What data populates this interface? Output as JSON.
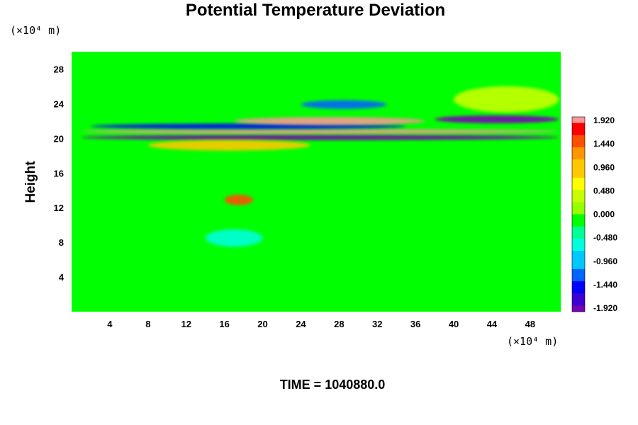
{
  "chart_data": {
    "type": "heatmap",
    "title": "Potential Temperature Deviation",
    "ylabel": "Height",
    "x_unit": "(×10⁴ m)",
    "y_unit": "(×10⁴ m)",
    "x_ticks": [
      "4",
      "8",
      "12",
      "16",
      "20",
      "24",
      "28",
      "32",
      "36",
      "40",
      "44",
      "48"
    ],
    "x_tick_values": [
      4,
      8,
      12,
      16,
      20,
      24,
      28,
      32,
      36,
      40,
      44,
      48
    ],
    "y_ticks": [
      "4",
      "8",
      "12",
      "16",
      "20",
      "24",
      "28"
    ],
    "y_tick_values": [
      4,
      8,
      12,
      16,
      20,
      24,
      28
    ],
    "xlim": [
      0,
      51.2
    ],
    "ylim": [
      0,
      30
    ],
    "colorbar": {
      "labels": [
        "1.920",
        "1.440",
        "0.960",
        "0.480",
        "0.000",
        "-0.480",
        "-0.960",
        "-1.440",
        "-1.920"
      ],
      "range": [
        -1.92,
        1.92
      ],
      "levels": 32,
      "stops": [
        "#7a00b4",
        "#3c00d2",
        "#0000ff",
        "#0064ff",
        "#00c8ff",
        "#00ffdc",
        "#00ff96",
        "#00ff00",
        "#96ff00",
        "#c8ff00",
        "#ffff00",
        "#ffc800",
        "#ff9600",
        "#ff5000",
        "#ff0000",
        "#ff9696"
      ]
    },
    "features": [
      {
        "x": [
          1,
          51
        ],
        "y": 20.1,
        "value": -1.9,
        "thickness": 0.6
      },
      {
        "x": [
          1,
          51
        ],
        "y": 20.8,
        "value": 1.9,
        "thickness": 0.5
      },
      {
        "x": [
          2,
          35
        ],
        "y": 21.4,
        "value": -1.5,
        "thickness": 0.6
      },
      {
        "x": [
          17,
          37
        ],
        "y": 22.0,
        "value": 1.9,
        "thickness": 0.9
      },
      {
        "x": [
          38,
          51
        ],
        "y": 22.2,
        "value": -1.8,
        "thickness": 0.9
      },
      {
        "x": [
          24,
          33
        ],
        "y": 23.9,
        "value": -1.1,
        "thickness": 1.0
      },
      {
        "x": [
          8,
          25
        ],
        "y": 19.2,
        "value": 1.0,
        "thickness": 1.2
      },
      {
        "x": [
          16,
          19
        ],
        "y": 12.9,
        "value": 1.5,
        "thickness": 1.2
      },
      {
        "x": [
          14,
          20
        ],
        "y": 8.5,
        "value": -0.7,
        "thickness": 2.0
      },
      {
        "x": [
          40,
          51
        ],
        "y": 24.5,
        "value": 0.5,
        "thickness": 3.0
      }
    ]
  },
  "footer": {
    "label": "TIME = 1040880.0"
  }
}
